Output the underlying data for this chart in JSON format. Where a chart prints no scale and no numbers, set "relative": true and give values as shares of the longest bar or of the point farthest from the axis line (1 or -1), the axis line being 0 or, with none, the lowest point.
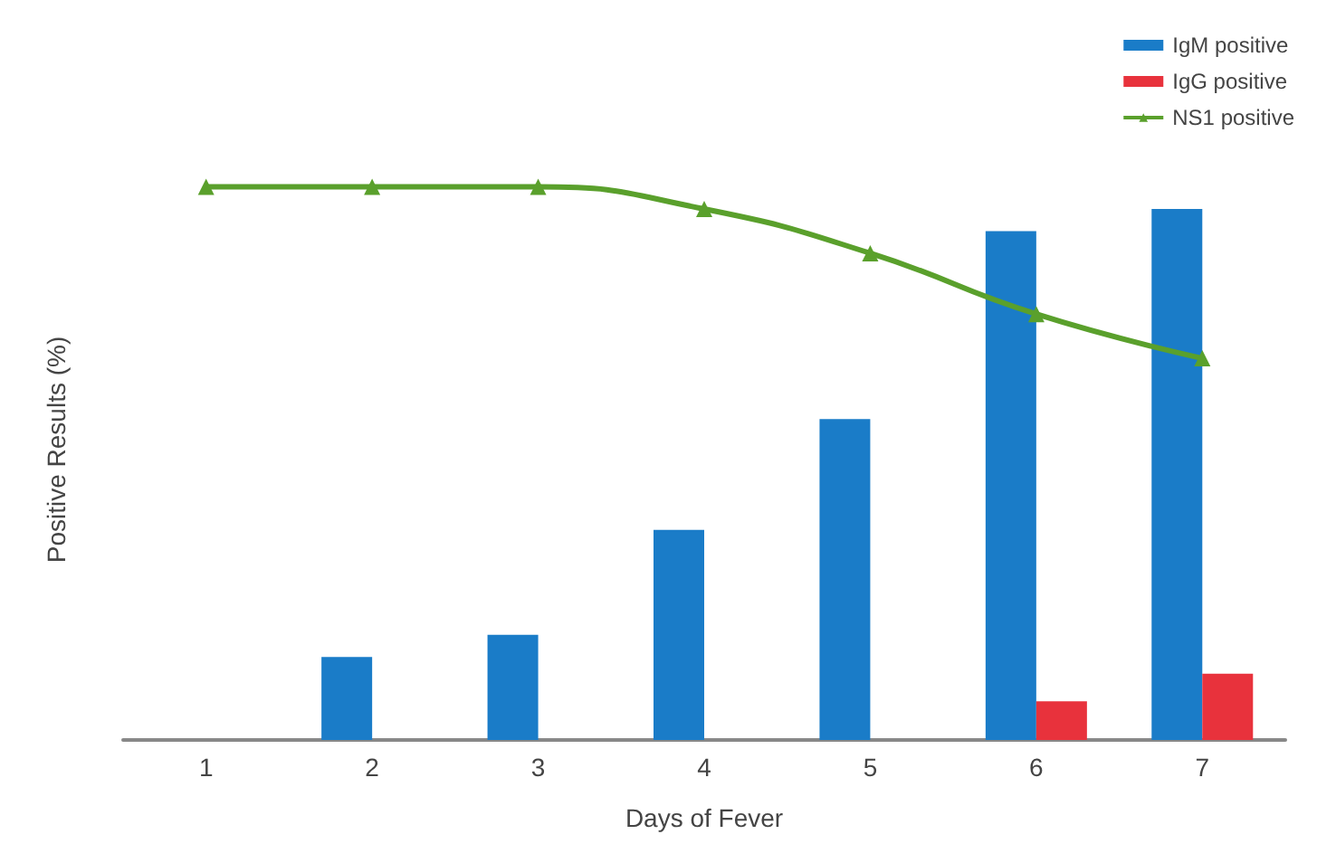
{
  "chart_data": {
    "type": "bar",
    "xlabel": "Days of Fever",
    "ylabel": "Positive Results (%)",
    "categories": [
      "1",
      "2",
      "3",
      "4",
      "5",
      "6",
      "7"
    ],
    "relative": true,
    "series": [
      {
        "name": "IgM positive",
        "color": "#1a7cc8",
        "values": [
          null,
          0.15,
          0.19,
          0.38,
          0.58,
          0.92,
          0.96
        ]
      },
      {
        "name": "IgG positive",
        "color": "#e8323c",
        "values": [
          null,
          null,
          null,
          null,
          null,
          0.07,
          0.12
        ]
      },
      {
        "name": "NS1 positive",
        "type": "line",
        "color": "#5aa02c",
        "marker": "triangle",
        "values": [
          1,
          1,
          1,
          0.96,
          0.88,
          0.77,
          0.69
        ]
      }
    ],
    "legend": "top right",
    "grid": false,
    "tick_labels": "x"
  }
}
